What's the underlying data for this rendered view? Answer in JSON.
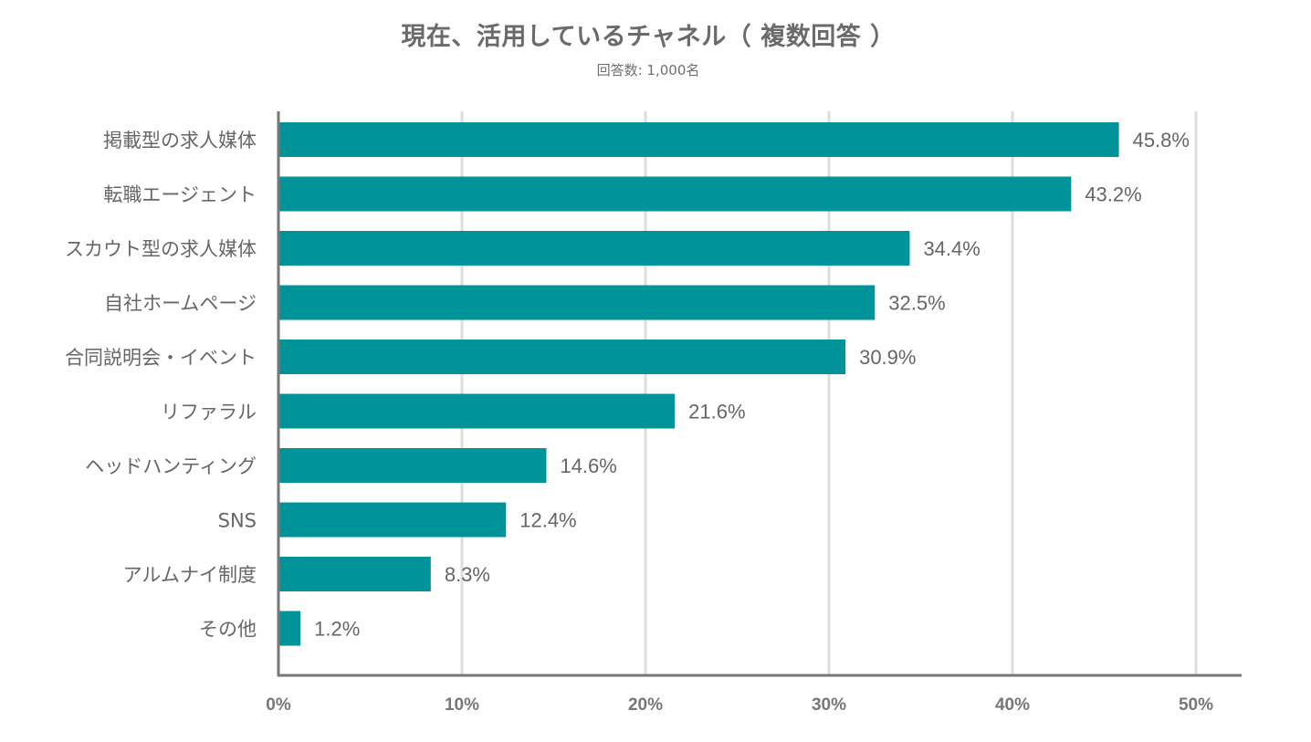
{
  "chart_data": {
    "type": "bar",
    "orientation": "horizontal",
    "title": "現在、活用しているチャネル（ 複数回答 ）",
    "subtitle": "回答数: 1,000名",
    "categories": [
      "掲載型の求人媒体",
      "転職エージェント",
      "スカウト型の求人媒体",
      "自社ホームページ",
      "合同説明会・イベント",
      "リファラル",
      "ヘッドハンティング",
      "SNS",
      "アルムナイ制度",
      "その他"
    ],
    "values": [
      45.8,
      43.2,
      34.4,
      32.5,
      30.9,
      21.6,
      14.6,
      12.4,
      8.3,
      1.2
    ],
    "value_labels": [
      "45.8%",
      "43.2%",
      "34.4%",
      "32.5%",
      "30.9%",
      "21.6%",
      "14.6%",
      "12.4%",
      "8.3%",
      "1.2%"
    ],
    "x_ticks": [
      0,
      10,
      20,
      30,
      40,
      50
    ],
    "x_tick_labels": [
      "0%",
      "10%",
      "20%",
      "30%",
      "40%",
      "50%"
    ],
    "xlim": [
      0,
      50
    ],
    "grid": "vertical",
    "legend": "none",
    "colors": {
      "bar": "#00949a",
      "grid": "#dddddd",
      "axis": "#777777"
    }
  }
}
